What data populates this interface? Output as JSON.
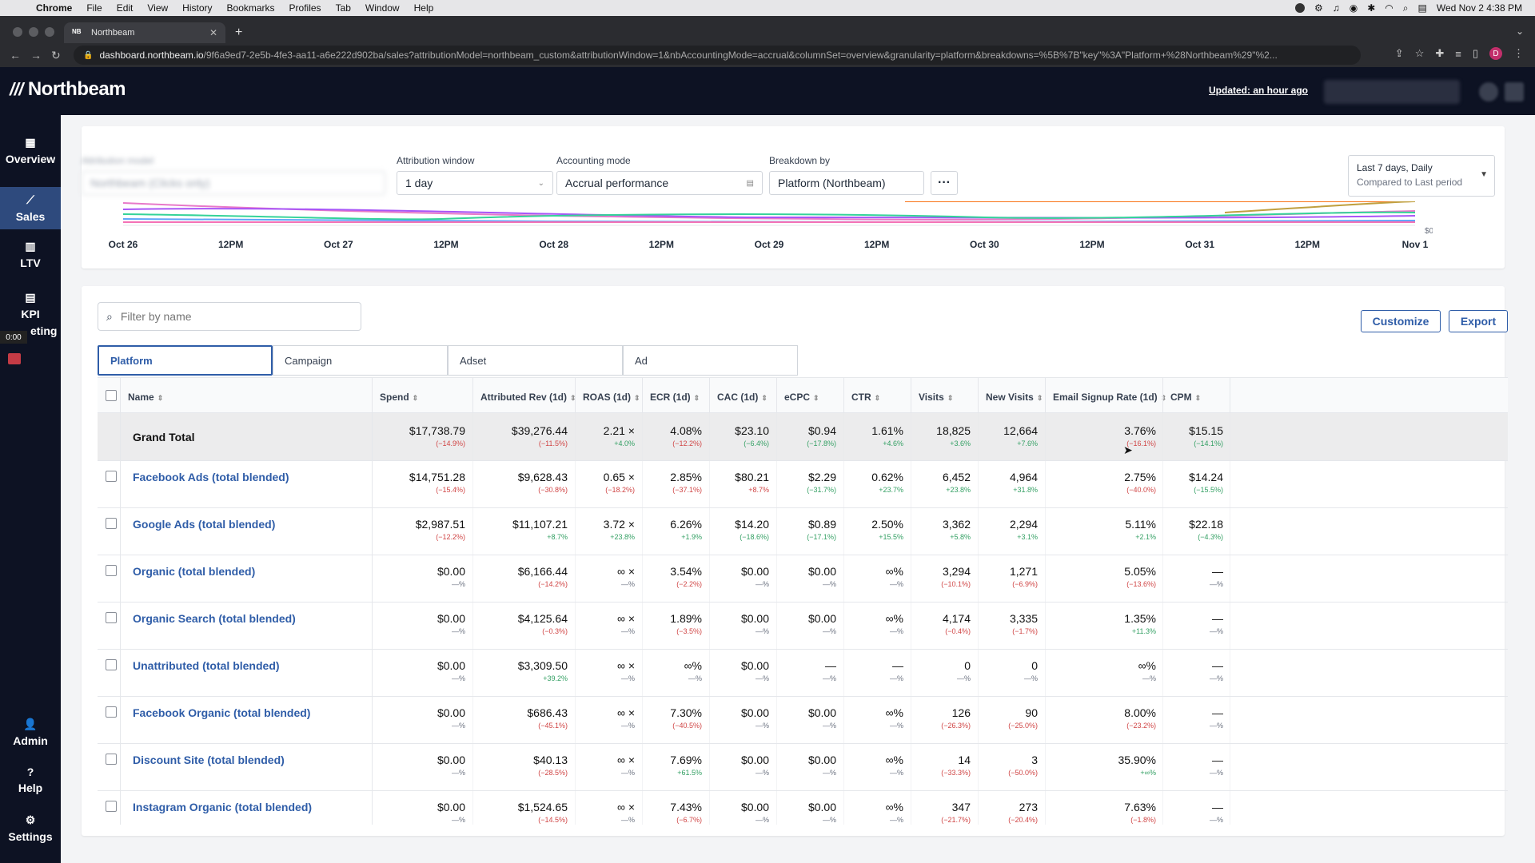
{
  "menubar": {
    "app": "Chrome",
    "items": [
      "File",
      "Edit",
      "View",
      "History",
      "Bookmarks",
      "Profiles",
      "Tab",
      "Window",
      "Help"
    ],
    "clock": "Wed Nov 2  4:38 PM"
  },
  "browser": {
    "tab_title": "Northbeam",
    "tab_favicon": "NB",
    "url_host": "dashboard.northbeam.io",
    "url_rest": "/9f6a9ed7-2e5b-4fe3-aa11-a6e222d902ba/sales?attributionModel=northbeam_custom&attributionWindow=1&nbAccountingMode=accrual&columnSet=overview&granularity=platform&breakdowns=%5B%7B\"key\"%3A\"Platform+%28Northbeam%29\"%2...",
    "profile_initial": "D"
  },
  "header": {
    "brand": "Northbeam",
    "updated": "Updated: an hour ago"
  },
  "sidebar": {
    "items": [
      {
        "label": "Overview",
        "icon": "grid-icon"
      },
      {
        "label": "Sales",
        "icon": "line-chart-icon"
      },
      {
        "label": "LTV",
        "icon": "bar-chart-icon"
      },
      {
        "label": "KPI",
        "icon": "document-icon"
      },
      {
        "label": "Admin",
        "icon": "user-icon"
      },
      {
        "label": "Help",
        "icon": "question-icon"
      },
      {
        "label": "Settings",
        "icon": "gear-icon"
      }
    ],
    "kpi_suffix": "eting",
    "recording_time": "0:00"
  },
  "controls": {
    "attribution_model_label": "Attribution model",
    "attribution_model_value": "Northbeam (Clicks only)",
    "attribution_window_label": "Attribution window",
    "attribution_window_value": "1 day",
    "accounting_mode_label": "Accounting mode",
    "accounting_mode_value": "Accrual performance",
    "breakdown_label": "Breakdown by",
    "breakdown_value": "Platform (Northbeam)",
    "more_label": "···",
    "date_range": "Last 7 days, Daily",
    "compare": "Compared to Last period"
  },
  "chart_data": {
    "type": "line",
    "x_ticks": [
      "Oct 26",
      "12PM",
      "Oct 27",
      "12PM",
      "Oct 28",
      "12PM",
      "Oct 29",
      "12PM",
      "Oct 30",
      "12PM",
      "Oct 31",
      "12PM",
      "Nov 1"
    ],
    "y_tick": "$0",
    "series_colors": [
      "#e879c9",
      "#a855f7",
      "#34d399",
      "#60a5fa",
      "#f97316",
      "#c0a040",
      "#f472b6"
    ]
  },
  "table_controls": {
    "filter_placeholder": "Filter by name",
    "customize": "Customize",
    "export": "Export",
    "tabs": [
      "Platform",
      "Campaign",
      "Adset",
      "Ad"
    ]
  },
  "columns": [
    "Name",
    "Spend",
    "Attributed Rev (1d)",
    "ROAS (1d)",
    "ECR (1d)",
    "CAC (1d)",
    "eCPC",
    "CTR",
    "Visits",
    "New Visits",
    "Email Signup Rate (1d)",
    "CPM"
  ],
  "grand_total": {
    "name": "Grand Total",
    "cells": [
      {
        "v": "$17,738.79",
        "c": "(−14.9%)",
        "t": "neg"
      },
      {
        "v": "$39,276.44",
        "c": "(−11.5%)",
        "t": "neg"
      },
      {
        "v": "2.21 ×",
        "c": "+4.0%",
        "t": "pos"
      },
      {
        "v": "4.08%",
        "c": "(−12.2%)",
        "t": "neg"
      },
      {
        "v": "$23.10",
        "c": "(−6.4%)",
        "t": "pos"
      },
      {
        "v": "$0.94",
        "c": "(−17.8%)",
        "t": "pos"
      },
      {
        "v": "1.61%",
        "c": "+4.6%",
        "t": "pos"
      },
      {
        "v": "18,825",
        "c": "+3.6%",
        "t": "pos"
      },
      {
        "v": "12,664",
        "c": "+7.6%",
        "t": "pos"
      },
      {
        "v": "3.76%",
        "c": "(−16.1%)",
        "t": "neg"
      },
      {
        "v": "$15.15",
        "c": "(−14.1%)",
        "t": "pos"
      }
    ]
  },
  "rows": [
    {
      "name": "Facebook Ads (total blended)",
      "cells": [
        {
          "v": "$14,751.28",
          "c": "(−15.4%)",
          "t": "neg"
        },
        {
          "v": "$9,628.43",
          "c": "(−30.8%)",
          "t": "neg"
        },
        {
          "v": "0.65 ×",
          "c": "(−18.2%)",
          "t": "neg"
        },
        {
          "v": "2.85%",
          "c": "(−37.1%)",
          "t": "neg"
        },
        {
          "v": "$80.21",
          "c": "+8.7%",
          "t": "neg"
        },
        {
          "v": "$2.29",
          "c": "(−31.7%)",
          "t": "pos"
        },
        {
          "v": "0.62%",
          "c": "+23.7%",
          "t": "pos"
        },
        {
          "v": "6,452",
          "c": "+23.8%",
          "t": "pos"
        },
        {
          "v": "4,964",
          "c": "+31.8%",
          "t": "pos"
        },
        {
          "v": "2.75%",
          "c": "(−40.0%)",
          "t": "neg"
        },
        {
          "v": "$14.24",
          "c": "(−15.5%)",
          "t": "pos"
        }
      ]
    },
    {
      "name": "Google Ads (total blended)",
      "cells": [
        {
          "v": "$2,987.51",
          "c": "(−12.2%)",
          "t": "neg"
        },
        {
          "v": "$11,107.21",
          "c": "+8.7%",
          "t": "pos"
        },
        {
          "v": "3.72 ×",
          "c": "+23.8%",
          "t": "pos"
        },
        {
          "v": "6.26%",
          "c": "+1.9%",
          "t": "pos"
        },
        {
          "v": "$14.20",
          "c": "(−18.6%)",
          "t": "pos"
        },
        {
          "v": "$0.89",
          "c": "(−17.1%)",
          "t": "pos"
        },
        {
          "v": "2.50%",
          "c": "+15.5%",
          "t": "pos"
        },
        {
          "v": "3,362",
          "c": "+5.8%",
          "t": "pos"
        },
        {
          "v": "2,294",
          "c": "+3.1%",
          "t": "pos"
        },
        {
          "v": "5.11%",
          "c": "+2.1%",
          "t": "pos"
        },
        {
          "v": "$22.18",
          "c": "(−4.3%)",
          "t": "pos"
        }
      ]
    },
    {
      "name": "Organic (total blended)",
      "cells": [
        {
          "v": "$0.00",
          "c": "—%",
          "t": "neu"
        },
        {
          "v": "$6,166.44",
          "c": "(−14.2%)",
          "t": "neg"
        },
        {
          "v": "∞ ×",
          "c": "—%",
          "t": "neu"
        },
        {
          "v": "3.54%",
          "c": "(−2.2%)",
          "t": "neg"
        },
        {
          "v": "$0.00",
          "c": "—%",
          "t": "neu"
        },
        {
          "v": "$0.00",
          "c": "—%",
          "t": "neu"
        },
        {
          "v": "∞%",
          "c": "—%",
          "t": "neu"
        },
        {
          "v": "3,294",
          "c": "(−10.1%)",
          "t": "neg"
        },
        {
          "v": "1,271",
          "c": "(−6.9%)",
          "t": "neg"
        },
        {
          "v": "5.05%",
          "c": "(−13.6%)",
          "t": "neg"
        },
        {
          "v": "—",
          "c": "—%",
          "t": "neu"
        }
      ]
    },
    {
      "name": "Organic Search (total blended)",
      "cells": [
        {
          "v": "$0.00",
          "c": "—%",
          "t": "neu"
        },
        {
          "v": "$4,125.64",
          "c": "(−0.3%)",
          "t": "neg"
        },
        {
          "v": "∞ ×",
          "c": "—%",
          "t": "neu"
        },
        {
          "v": "1.89%",
          "c": "(−3.5%)",
          "t": "neg"
        },
        {
          "v": "$0.00",
          "c": "—%",
          "t": "neu"
        },
        {
          "v": "$0.00",
          "c": "—%",
          "t": "neu"
        },
        {
          "v": "∞%",
          "c": "—%",
          "t": "neu"
        },
        {
          "v": "4,174",
          "c": "(−0.4%)",
          "t": "neg"
        },
        {
          "v": "3,335",
          "c": "(−1.7%)",
          "t": "neg"
        },
        {
          "v": "1.35%",
          "c": "+11.3%",
          "t": "pos"
        },
        {
          "v": "—",
          "c": "—%",
          "t": "neu"
        }
      ]
    },
    {
      "name": "Unattributed (total blended)",
      "cells": [
        {
          "v": "$0.00",
          "c": "—%",
          "t": "neu"
        },
        {
          "v": "$3,309.50",
          "c": "+39.2%",
          "t": "pos"
        },
        {
          "v": "∞ ×",
          "c": "—%",
          "t": "neu"
        },
        {
          "v": "∞%",
          "c": "—%",
          "t": "neu"
        },
        {
          "v": "$0.00",
          "c": "—%",
          "t": "neu"
        },
        {
          "v": "—",
          "c": "—%",
          "t": "neu"
        },
        {
          "v": "—",
          "c": "—%",
          "t": "neu"
        },
        {
          "v": "0",
          "c": "—%",
          "t": "neu"
        },
        {
          "v": "0",
          "c": "—%",
          "t": "neu"
        },
        {
          "v": "∞%",
          "c": "—%",
          "t": "neu"
        },
        {
          "v": "—",
          "c": "—%",
          "t": "neu"
        }
      ]
    },
    {
      "name": "Facebook Organic (total blended)",
      "cells": [
        {
          "v": "$0.00",
          "c": "—%",
          "t": "neu"
        },
        {
          "v": "$686.43",
          "c": "(−45.1%)",
          "t": "neg"
        },
        {
          "v": "∞ ×",
          "c": "—%",
          "t": "neu"
        },
        {
          "v": "7.30%",
          "c": "(−40.5%)",
          "t": "neg"
        },
        {
          "v": "$0.00",
          "c": "—%",
          "t": "neu"
        },
        {
          "v": "$0.00",
          "c": "—%",
          "t": "neu"
        },
        {
          "v": "∞%",
          "c": "—%",
          "t": "neu"
        },
        {
          "v": "126",
          "c": "(−26.3%)",
          "t": "neg"
        },
        {
          "v": "90",
          "c": "(−25.0%)",
          "t": "neg"
        },
        {
          "v": "8.00%",
          "c": "(−23.2%)",
          "t": "neg"
        },
        {
          "v": "—",
          "c": "—%",
          "t": "neu"
        }
      ]
    },
    {
      "name": "Discount Site (total blended)",
      "cells": [
        {
          "v": "$0.00",
          "c": "—%",
          "t": "neu"
        },
        {
          "v": "$40.13",
          "c": "(−28.5%)",
          "t": "neg"
        },
        {
          "v": "∞ ×",
          "c": "—%",
          "t": "neu"
        },
        {
          "v": "7.69%",
          "c": "+61.5%",
          "t": "pos"
        },
        {
          "v": "$0.00",
          "c": "—%",
          "t": "neu"
        },
        {
          "v": "$0.00",
          "c": "—%",
          "t": "neu"
        },
        {
          "v": "∞%",
          "c": "—%",
          "t": "neu"
        },
        {
          "v": "14",
          "c": "(−33.3%)",
          "t": "neg"
        },
        {
          "v": "3",
          "c": "(−50.0%)",
          "t": "neg"
        },
        {
          "v": "35.90%",
          "c": "+∞%",
          "t": "pos"
        },
        {
          "v": "—",
          "c": "—%",
          "t": "neu"
        }
      ]
    },
    {
      "name": "Instagram Organic (total blended)",
      "cells": [
        {
          "v": "$0.00",
          "c": "—%",
          "t": "neu"
        },
        {
          "v": "$1,524.65",
          "c": "(−14.5%)",
          "t": "neg"
        },
        {
          "v": "∞ ×",
          "c": "—%",
          "t": "neu"
        },
        {
          "v": "7.43%",
          "c": "(−6.7%)",
          "t": "neg"
        },
        {
          "v": "$0.00",
          "c": "—%",
          "t": "neu"
        },
        {
          "v": "$0.00",
          "c": "—%",
          "t": "neu"
        },
        {
          "v": "∞%",
          "c": "—%",
          "t": "neu"
        },
        {
          "v": "347",
          "c": "(−21.7%)",
          "t": "neg"
        },
        {
          "v": "273",
          "c": "(−20.4%)",
          "t": "neg"
        },
        {
          "v": "7.63%",
          "c": "(−1.8%)",
          "t": "neg"
        },
        {
          "v": "—",
          "c": "—%",
          "t": "neu"
        }
      ]
    }
  ]
}
